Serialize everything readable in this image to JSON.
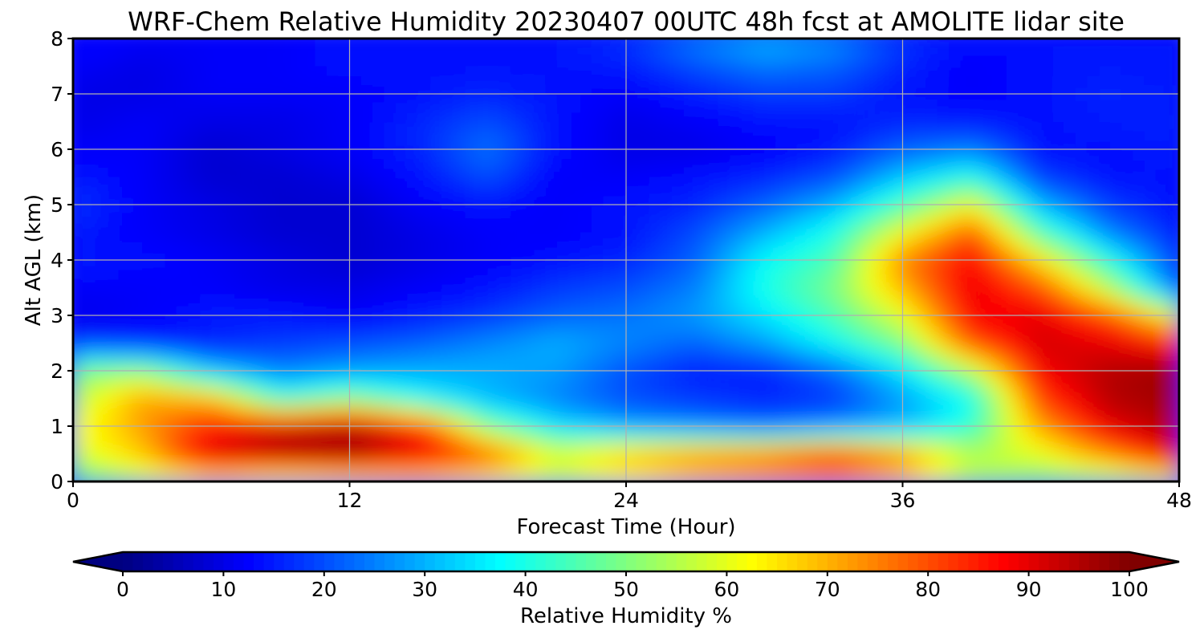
{
  "chart_data": {
    "type": "heatmap",
    "title": "WRF-Chem Relative Humidity 20230407 00UTC 48h fcst at AMOLITE lidar site",
    "xlabel": "Forecast Time (Hour)",
    "ylabel": "Alt AGL (km)",
    "xlim": [
      0,
      48
    ],
    "ylim": [
      0,
      8
    ],
    "x_ticks": [
      0,
      12,
      24,
      36,
      48
    ],
    "y_ticks": [
      0,
      1,
      2,
      3,
      4,
      5,
      6,
      7,
      8
    ],
    "grid": true,
    "x": [
      0,
      3,
      6,
      9,
      12,
      15,
      18,
      21,
      24,
      27,
      30,
      33,
      36,
      39,
      42,
      45,
      48
    ],
    "y": [
      0,
      0.5,
      1,
      1.5,
      2,
      2.5,
      3,
      3.5,
      4,
      4.5,
      5,
      5.5,
      6,
      6.5,
      7,
      7.5,
      8
    ],
    "z": [
      [
        45,
        55,
        60,
        55,
        58,
        62,
        60,
        55,
        60,
        65,
        68,
        70,
        65,
        55,
        50,
        50,
        55
      ],
      [
        58,
        68,
        92,
        96,
        97,
        90,
        80,
        60,
        70,
        75,
        78,
        85,
        75,
        55,
        60,
        75,
        92
      ],
      [
        60,
        72,
        85,
        92,
        96,
        85,
        50,
        35,
        28,
        25,
        22,
        25,
        30,
        42,
        72,
        90,
        96
      ],
      [
        55,
        72,
        70,
        42,
        50,
        38,
        30,
        25,
        20,
        18,
        16,
        18,
        28,
        38,
        82,
        95,
        97
      ],
      [
        50,
        52,
        32,
        25,
        28,
        30,
        30,
        28,
        20,
        15,
        15,
        22,
        35,
        55,
        88,
        95,
        98
      ],
      [
        18,
        15,
        15,
        18,
        20,
        22,
        26,
        30,
        26,
        22,
        28,
        38,
        50,
        80,
        92,
        90,
        85
      ],
      [
        10,
        12,
        15,
        15,
        12,
        15,
        18,
        22,
        24,
        28,
        35,
        45,
        60,
        88,
        90,
        80,
        60
      ],
      [
        12,
        12,
        12,
        10,
        10,
        12,
        14,
        18,
        20,
        25,
        40,
        50,
        70,
        90,
        80,
        55,
        20
      ],
      [
        15,
        14,
        12,
        10,
        8,
        10,
        12,
        14,
        16,
        22,
        38,
        45,
        75,
        88,
        65,
        40,
        18
      ],
      [
        15,
        12,
        10,
        8,
        8,
        10,
        12,
        12,
        14,
        20,
        30,
        40,
        62,
        80,
        45,
        25,
        15
      ],
      [
        18,
        12,
        10,
        8,
        8,
        12,
        14,
        12,
        14,
        16,
        22,
        30,
        45,
        62,
        30,
        18,
        14
      ],
      [
        15,
        12,
        8,
        8,
        10,
        14,
        20,
        12,
        12,
        14,
        16,
        20,
        32,
        40,
        18,
        14,
        14
      ],
      [
        12,
        12,
        8,
        10,
        12,
        16,
        24,
        14,
        10,
        10,
        12,
        15,
        22,
        25,
        14,
        14,
        15
      ],
      [
        10,
        12,
        10,
        10,
        12,
        16,
        20,
        14,
        10,
        12,
        14,
        14,
        16,
        15,
        14,
        15,
        16
      ],
      [
        10,
        10,
        12,
        12,
        12,
        14,
        16,
        14,
        12,
        15,
        18,
        18,
        14,
        12,
        14,
        16,
        15
      ],
      [
        12,
        10,
        12,
        12,
        14,
        14,
        14,
        14,
        15,
        20,
        24,
        22,
        16,
        12,
        14,
        15,
        14
      ],
      [
        15,
        12,
        12,
        12,
        14,
        14,
        14,
        15,
        18,
        26,
        32,
        28,
        18,
        14,
        14,
        15,
        15
      ]
    ],
    "colorbar": {
      "label": "Relative Humidity %",
      "ticks": [
        0,
        10,
        20,
        30,
        40,
        50,
        60,
        70,
        80,
        90,
        100
      ],
      "range": [
        0,
        100
      ],
      "extend": "both",
      "colormap": "jet"
    }
  },
  "colors": {
    "grid": "#b0b0b0",
    "axes": "#000000"
  }
}
